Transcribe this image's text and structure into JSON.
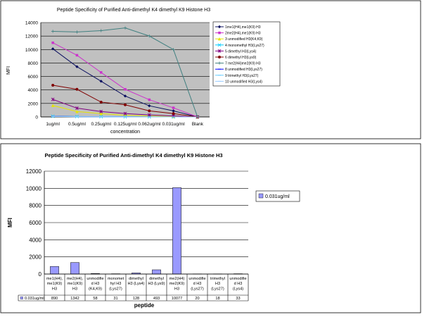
{
  "chart_data": [
    {
      "type": "line",
      "title": "Peptide Specificity of Purified Anti-dimethyl K4 dimethyl K9 Histone H3",
      "xlabel": "concentration",
      "ylabel": "MFI",
      "ylim": [
        0,
        14000
      ],
      "yticks": [
        "0",
        "2000",
        "4000",
        "6000",
        "8000",
        "10000",
        "12000",
        "14000"
      ],
      "grid": true,
      "legend_position": "top-right",
      "categories": [
        "1ug/ml",
        "0.5ug/ml",
        "0.25ug/ml",
        "0.125ug/ml",
        "0.062ug/ml",
        "0.031ug/ml",
        "Blank"
      ],
      "series": [
        {
          "name": "1me1(H4),me1(K9) H3",
          "color": "#0b1060",
          "marker": "diamond",
          "values": [
            10100,
            7450,
            5300,
            3100,
            1650,
            900,
            0
          ]
        },
        {
          "name": "2me2(H4),me1(K9) H3",
          "color": "#cc33cc",
          "marker": "square",
          "values": [
            11000,
            9150,
            6600,
            4100,
            2550,
            1350,
            0
          ]
        },
        {
          "name": "3 unmodified H3(K4,K9)",
          "color": "#e6e600",
          "marker": "triangle",
          "values": [
            1700,
            800,
            500,
            250,
            150,
            50,
            0
          ]
        },
        {
          "name": "4 monomethyl H3(Lys27)",
          "color": "#00ccff",
          "marker": "x",
          "values": [
            100,
            60,
            40,
            20,
            10,
            5,
            0
          ]
        },
        {
          "name": "5 dimethyl H3(Lys4)",
          "color": "#800080",
          "marker": "star",
          "values": [
            2600,
            1300,
            800,
            500,
            300,
            150,
            0
          ]
        },
        {
          "name": "6 dimethyl H3(Lys9)",
          "color": "#800000",
          "marker": "circle",
          "values": [
            4700,
            4100,
            2200,
            1800,
            900,
            500,
            0
          ]
        },
        {
          "name": "7 me2(H4)me2(K9) H3",
          "color": "#408080",
          "marker": "plus",
          "values": [
            12700,
            12600,
            12800,
            13200,
            12000,
            10000,
            0
          ]
        },
        {
          "name": "8 unmodified H3(Lys27)",
          "color": "#0000ff",
          "marker": "dash",
          "values": [
            100,
            50,
            30,
            20,
            10,
            5,
            0
          ]
        },
        {
          "name": "9 trimethyl H3(Lys27)",
          "color": "#66ccff",
          "marker": "dash",
          "values": [
            80,
            40,
            25,
            15,
            10,
            5,
            0
          ]
        },
        {
          "name": "10 unmodified H3(Lys4)",
          "color": "#99ccff",
          "marker": "dash",
          "values": [
            60,
            30,
            20,
            10,
            5,
            5,
            0
          ]
        }
      ]
    },
    {
      "type": "bar",
      "title": "Peptide Specificity of Purified Anti-dimethyl K4 dimethyl K9 Histone H3",
      "xlabel": "peptide",
      "ylabel": "MFI",
      "ylim": [
        0,
        12000
      ],
      "yticks": [
        "0",
        "2000",
        "4000",
        "6000",
        "8000",
        "10000",
        "12000"
      ],
      "grid": true,
      "legend_position": "right",
      "series": [
        {
          "name": "0.031ug/ml",
          "color": "#9999ff",
          "values": [
            890,
            1342,
            58,
            31,
            128,
            493,
            10077,
            20,
            18,
            33
          ]
        }
      ],
      "categories": [
        [
          "me1(H4),",
          "me1(K9)",
          "H3"
        ],
        [
          "me2(H4),",
          "me1(K9)",
          "H3"
        ],
        [
          "unmodifie",
          "d H3",
          "(K4,K9)"
        ],
        [
          "monomet",
          "hyl H3",
          "(Lys27)"
        ],
        [
          "dimethyl",
          "H3 (Lys4)"
        ],
        [
          "dimethyl",
          "H3 (Lys9)"
        ],
        [
          "me2(H4)",
          "me2(K9)",
          "H3"
        ],
        [
          "unmodifie",
          "d H3",
          "(Lys27)"
        ],
        [
          "trimethyl",
          "H3",
          "(Lys27)"
        ],
        [
          "unmodifie",
          "d H3",
          "(Lys4)"
        ]
      ],
      "value_labels": [
        "890",
        "1342",
        "58",
        "31",
        "128",
        "493",
        "10077",
        "20",
        "18",
        "33"
      ],
      "table_row_label": "0.031ug/ml"
    }
  ]
}
